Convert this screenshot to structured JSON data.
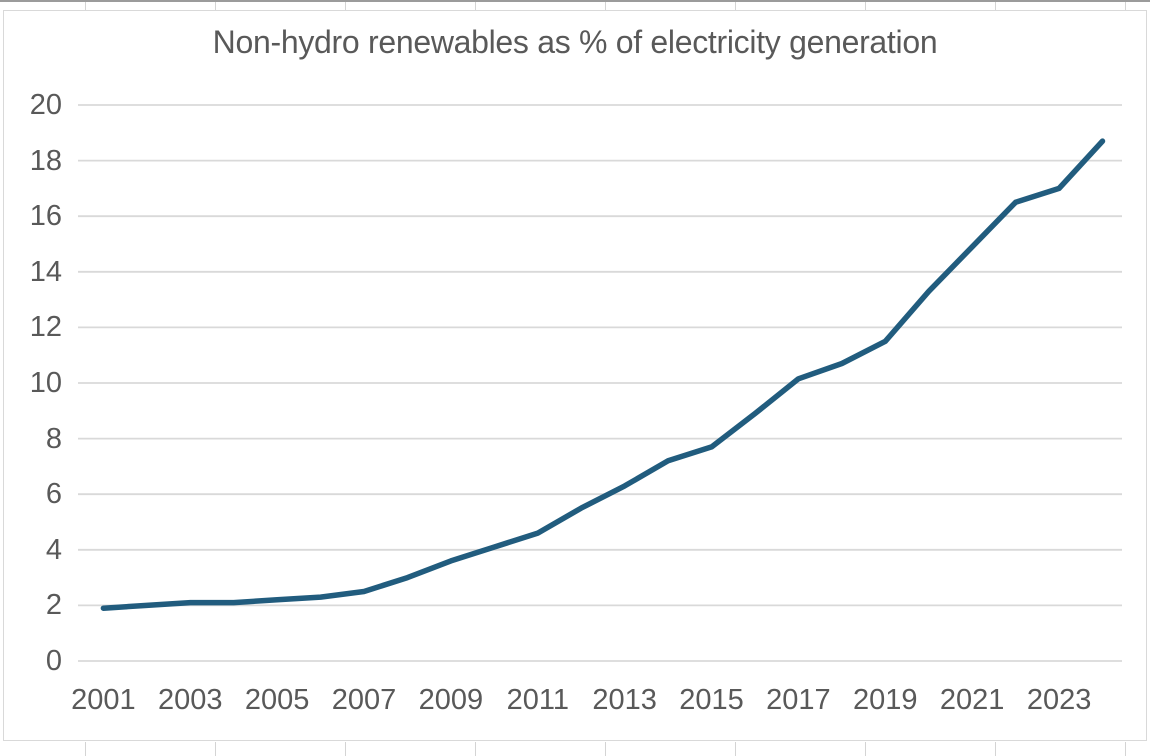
{
  "chart_data": {
    "type": "line",
    "title": "Non-hydro renewables as % of electricity generation",
    "x": [
      2001,
      2002,
      2003,
      2004,
      2005,
      2006,
      2007,
      2008,
      2009,
      2010,
      2011,
      2012,
      2013,
      2014,
      2015,
      2016,
      2017,
      2018,
      2019,
      2020,
      2021,
      2022,
      2023,
      2024
    ],
    "values": [
      1.9,
      2.0,
      2.1,
      2.1,
      2.2,
      2.3,
      2.5,
      3.0,
      3.6,
      4.1,
      4.6,
      5.5,
      6.3,
      7.2,
      7.7,
      8.9,
      10.15,
      10.7,
      11.5,
      13.3,
      14.9,
      16.5,
      17.0,
      18.7
    ],
    "x_tick_labels": [
      "2001",
      "2003",
      "2005",
      "2007",
      "2009",
      "2011",
      "2013",
      "2015",
      "2017",
      "2019",
      "2021",
      "2023"
    ],
    "y_ticks": [
      0,
      2,
      4,
      6,
      8,
      10,
      12,
      14,
      16,
      18,
      20
    ],
    "ylim": [
      0,
      20
    ],
    "xlabel": "",
    "ylabel": "",
    "grid": "horizontal-only",
    "legend": "none",
    "colors": {
      "line": "#215C7E",
      "gridline": "#D9D9D9",
      "axis_text": "#595959",
      "title_text": "#595959",
      "chart_border": "#D9D9D9",
      "sheet_gridline": "#D4D4D4"
    }
  }
}
